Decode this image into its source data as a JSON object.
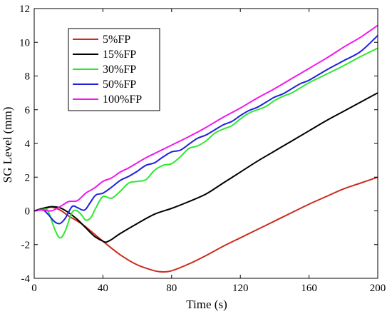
{
  "chart_data": {
    "type": "line",
    "title": "",
    "xlabel": "Time (s)",
    "ylabel": "SG Level (mm)",
    "xlim": [
      0,
      200
    ],
    "ylim": [
      -4,
      12
    ],
    "xticks": [
      0,
      40,
      80,
      120,
      160,
      200
    ],
    "yticks": [
      -4,
      -2,
      0,
      2,
      4,
      6,
      8,
      10,
      12
    ],
    "xtick_labels": [
      "0",
      "40",
      "80",
      "120",
      "160",
      "200"
    ],
    "ytick_labels": [
      "-4",
      "-2",
      "0",
      "2",
      "4",
      "6",
      "8",
      "10",
      "12"
    ],
    "grid": false,
    "legend_position": "top-left",
    "series": [
      {
        "name": "5%FP",
        "color": "#cc2b1d",
        "x": [
          0,
          5,
          10,
          15,
          20,
          25,
          30,
          40,
          50,
          60,
          70,
          75,
          80,
          90,
          100,
          110,
          120,
          130,
          140,
          150,
          160,
          170,
          180,
          190,
          200
        ],
        "y": [
          0,
          0.1,
          0.22,
          0.05,
          -0.3,
          -0.6,
          -0.95,
          -1.8,
          -2.6,
          -3.2,
          -3.55,
          -3.62,
          -3.55,
          -3.15,
          -2.65,
          -2.1,
          -1.6,
          -1.1,
          -0.6,
          -0.1,
          0.4,
          0.85,
          1.3,
          1.65,
          2.0
        ]
      },
      {
        "name": "15%FP",
        "color": "#000000",
        "x": [
          0,
          5,
          10,
          15,
          20,
          25,
          30,
          35,
          40,
          42,
          45,
          50,
          60,
          70,
          80,
          90,
          100,
          110,
          120,
          130,
          140,
          150,
          160,
          170,
          180,
          190,
          200
        ],
        "y": [
          0,
          0.15,
          0.25,
          0.18,
          -0.1,
          -0.5,
          -1.0,
          -1.5,
          -1.8,
          -1.85,
          -1.7,
          -1.35,
          -0.75,
          -0.2,
          0.15,
          0.55,
          1.0,
          1.65,
          2.3,
          2.95,
          3.55,
          4.15,
          4.75,
          5.35,
          5.9,
          6.45,
          7.0
        ]
      },
      {
        "name": "30%FP",
        "color": "#2ee82e",
        "x": [
          0,
          5,
          8,
          12,
          15,
          18,
          22,
          25,
          28,
          30,
          33,
          36,
          40,
          45,
          50,
          55,
          60,
          65,
          70,
          75,
          80,
          85,
          90,
          95,
          100,
          105,
          110,
          115,
          120,
          125,
          130,
          135,
          140,
          145,
          150,
          155,
          160,
          170,
          180,
          190,
          200
        ],
        "y": [
          0,
          0.08,
          0.0,
          -1.1,
          -1.6,
          -1.2,
          -0.1,
          0.0,
          -0.3,
          -0.55,
          -0.4,
          0.2,
          0.85,
          0.75,
          1.15,
          1.65,
          1.75,
          1.85,
          2.4,
          2.7,
          2.8,
          3.2,
          3.7,
          3.85,
          4.15,
          4.6,
          4.85,
          5.05,
          5.45,
          5.8,
          6.0,
          6.2,
          6.55,
          6.8,
          7.0,
          7.3,
          7.6,
          8.1,
          8.6,
          9.15,
          9.65
        ]
      },
      {
        "name": "50%FP",
        "color": "#1f1fe0",
        "x": [
          0,
          5,
          8,
          12,
          15,
          18,
          22,
          25,
          28,
          30,
          33,
          36,
          40,
          45,
          50,
          55,
          60,
          65,
          70,
          75,
          80,
          85,
          90,
          95,
          100,
          105,
          110,
          115,
          120,
          125,
          130,
          135,
          140,
          145,
          150,
          155,
          160,
          170,
          180,
          190,
          200
        ],
        "y": [
          0,
          0.05,
          -0.2,
          -0.65,
          -0.75,
          -0.45,
          0.25,
          0.2,
          0.05,
          0.1,
          0.55,
          0.95,
          1.05,
          1.4,
          1.8,
          2.05,
          2.35,
          2.7,
          2.85,
          3.2,
          3.5,
          3.6,
          3.95,
          4.3,
          4.5,
          4.8,
          5.1,
          5.3,
          5.65,
          5.95,
          6.15,
          6.45,
          6.75,
          6.95,
          7.25,
          7.55,
          7.75,
          8.35,
          8.9,
          9.45,
          10.4
        ]
      },
      {
        "name": "100%FP",
        "color": "#ef18ef",
        "x": [
          0,
          5,
          10,
          15,
          20,
          25,
          30,
          35,
          40,
          45,
          50,
          55,
          60,
          65,
          70,
          75,
          80,
          85,
          90,
          100,
          110,
          120,
          130,
          140,
          150,
          160,
          170,
          180,
          190,
          200
        ],
        "y": [
          0,
          0.05,
          0.0,
          0.25,
          0.55,
          0.6,
          1.05,
          1.35,
          1.75,
          1.95,
          2.3,
          2.55,
          2.85,
          3.15,
          3.4,
          3.65,
          3.9,
          4.15,
          4.4,
          4.95,
          5.55,
          6.1,
          6.7,
          7.25,
          7.85,
          8.45,
          9.05,
          9.7,
          10.3,
          11.0
        ]
      }
    ]
  }
}
